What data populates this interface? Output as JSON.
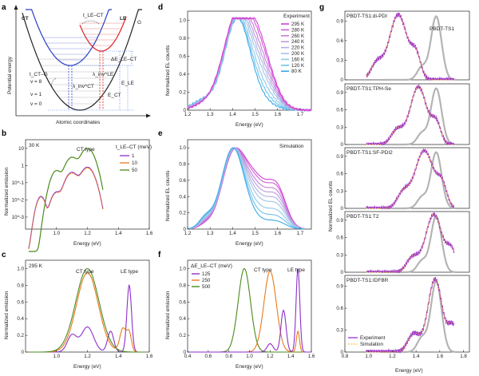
{
  "panel_letters": {
    "a": "a",
    "b": "b",
    "c": "c",
    "d": "d",
    "e": "e",
    "f": "f",
    "g": "g"
  },
  "panel_a": {
    "ylabel": "Potential energy",
    "xlabel": "Atomic coordinates",
    "labels": {
      "ct": "CT",
      "le": "LE",
      "g": "G",
      "t_le_ct": "t_LE–CT",
      "t_ct_g": "t_CT–G",
      "lambda_ct": "λ_inv^CT",
      "lambda_le": "λ_inv^LE",
      "delta_e": "ΔE_LE–CT",
      "e_le": "E_LE",
      "e_ct": "E_CT",
      "v8": "v = 8",
      "v1": "v = 1",
      "v0": "v = 0"
    },
    "colors": {
      "ct": "#2b3fc4",
      "le": "#e02020",
      "g": "#222222"
    }
  },
  "panel_b": {
    "temp": "30 K",
    "type_label": "CT type",
    "ylabel": "Normalized emission",
    "xlabel": "Energy (eV)",
    "legend_title": "t_LE–CT (meV)",
    "chart_data": {
      "type": "line",
      "xlim": [
        0.8,
        1.6
      ],
      "ylog": true,
      "xticks": [
        "1.0",
        "1.2",
        "1.4",
        "1.6"
      ],
      "yticks": [
        "10^-3",
        "10^-2",
        "10^-1",
        "1",
        "10"
      ],
      "series": [
        {
          "name": "1",
          "color": "#8e2fc9",
          "peaks": [
            [
              1.0,
              0.02
            ],
            [
              1.1,
              0.5
            ],
            [
              1.2,
              0.9
            ]
          ]
        },
        {
          "name": "10",
          "color": "#e87a1c",
          "peaks": [
            [
              1.0,
              0.025
            ],
            [
              1.1,
              0.4
            ],
            [
              1.2,
              0.8
            ]
          ]
        },
        {
          "name": "50",
          "color": "#4a8a1c",
          "peaks": [
            [
              1.0,
              0.5
            ],
            [
              1.1,
              3
            ],
            [
              1.2,
              8
            ]
          ]
        }
      ]
    }
  },
  "panel_c": {
    "temp": "295 K",
    "ct_label": "CT type",
    "le_label": "LE type",
    "ylabel": "Normalized emission",
    "xlabel": "Energy (eV)",
    "chart_data": {
      "type": "line",
      "xlim": [
        0.8,
        1.6
      ],
      "ylim": [
        0,
        1.1
      ],
      "xticks": [
        "1.0",
        "1.2",
        "1.4",
        "1.6"
      ],
      "yticks": [
        "0",
        "0.2",
        "0.4",
        "0.6",
        "0.8",
        "1.0"
      ]
    }
  },
  "panel_d": {
    "legend_title": "Experiment",
    "ylabel": "Normalized EL counts",
    "xlabel": "Energy (eV)",
    "chart_data": {
      "type": "line",
      "xlim": [
        1.2,
        1.75
      ],
      "ylim": [
        0,
        1.1
      ],
      "xticks": [
        "1.2",
        "1.3",
        "1.4",
        "1.5",
        "1.6",
        "1.7"
      ],
      "yticks": [
        "0",
        "0.2",
        "0.4",
        "0.6",
        "0.8",
        "1.0"
      ],
      "temps": [
        "295 K",
        "280 K",
        "260 K",
        "240 K",
        "220 K",
        "200 K",
        "160 K",
        "120 K",
        "80 K"
      ],
      "colors": [
        "#d63fd6",
        "#d060d8",
        "#c77fdb",
        "#bd99de",
        "#b2b0e1",
        "#a3c2e5",
        "#8ec8ea",
        "#6ec2ee",
        "#3aa8e6"
      ],
      "shoulder": [
        0.6,
        0.55,
        0.48,
        0.42,
        0.36,
        0.3,
        0.22,
        0.15,
        0.09
      ]
    }
  },
  "panel_e": {
    "legend_title": "Simulation",
    "ylabel": "Normalized EL counts",
    "xlabel": "Energy (eV)",
    "chart_data": {
      "type": "line",
      "xlim": [
        1.2,
        1.75
      ],
      "ylim": [
        0,
        1.1
      ],
      "xticks": [
        "1.2",
        "1.3",
        "1.4",
        "1.5",
        "1.6",
        "1.7"
      ],
      "yticks": [
        "0",
        "0.2",
        "0.4",
        "0.6",
        "0.8",
        "1.0"
      ]
    }
  },
  "panel_f": {
    "legend_title": "ΔE_LE–CT (meV)",
    "ct_label": "CT type",
    "le_label": "LE type",
    "ylabel": "Normalized emission",
    "xlabel": "Energy (eV)",
    "chart_data": {
      "type": "line",
      "xlim": [
        0.4,
        1.6
      ],
      "ylim": [
        0,
        1.1
      ],
      "xticks": [
        "0.4",
        "0.6",
        "0.8",
        "1.0",
        "1.2",
        "1.4",
        "1.6"
      ],
      "yticks": [
        "0",
        "0.2",
        "0.4",
        "0.6",
        "0.8",
        "1.0"
      ],
      "series": [
        {
          "name": "125",
          "color": "#8e2fc9"
        },
        {
          "name": "250",
          "color": "#e87a1c"
        },
        {
          "name": "500",
          "color": "#4a8a1c"
        }
      ]
    }
  },
  "panel_g": {
    "ylabel": "Normalized EL counts",
    "xlabel": "Energy (eV)",
    "ref_label": "PBDT-TS1",
    "legend": {
      "experiment": "Experiment",
      "simulation": "Simulation"
    },
    "subpanels": [
      "PBDT-TS1:di-PDI",
      "PBDT-TS1:TPH-Se",
      "PBDT-TS1:SF-PDI2",
      "PBDT-TS1:T2",
      "PBDT-TS1:IDFBR"
    ],
    "chart_data": {
      "type": "line",
      "xlim": [
        0.8,
        1.85
      ],
      "xticks": [
        "0.8",
        "1.0",
        "1.2",
        "1.4",
        "1.6",
        "1.8"
      ],
      "yticks": [
        "0",
        "0.3",
        "0.6",
        "0.9"
      ]
    }
  }
}
